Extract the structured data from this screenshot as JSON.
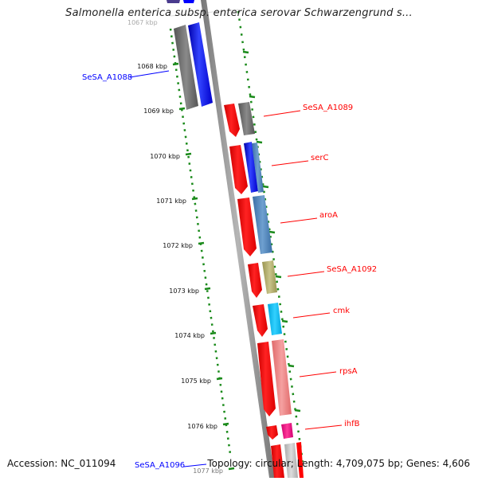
{
  "title": "Salmonella enterica subsp. enterica serovar Schwarzengrund s...",
  "footer": {
    "accession": "Accession: NC_011094",
    "stats": "Topology: circular; Length: 4,709,075 bp; Genes: 4,606"
  },
  "colors": {
    "forward_strand": "#0000ff",
    "reverse_strand": "#ff0000",
    "backbone": "#888888",
    "tick_dots": "#1a8a1a",
    "grey_gene": "#666666"
  },
  "kbp_ticks": [
    {
      "label": "1068 kbp"
    },
    {
      "label": "1069 kbp"
    },
    {
      "label": "1070 kbp"
    },
    {
      "label": "1071 kbp"
    },
    {
      "label": "1072 kbp"
    },
    {
      "label": "1073 kbp"
    },
    {
      "label": "1074 kbp"
    },
    {
      "label": "1075 kbp"
    },
    {
      "label": "1076 kbp"
    },
    {
      "label": "1077 kbp"
    }
  ],
  "gene_labels": [
    {
      "name": "SeSA_A1088",
      "strand": "forward"
    },
    {
      "name": "SeSA_A1089",
      "strand": "reverse"
    },
    {
      "name": "serC",
      "strand": "reverse"
    },
    {
      "name": "aroA",
      "strand": "reverse"
    },
    {
      "name": "SeSA_A1092",
      "strand": "reverse"
    },
    {
      "name": "cmk",
      "strand": "reverse"
    },
    {
      "name": "rpsA",
      "strand": "reverse"
    },
    {
      "name": "ihfB",
      "strand": "reverse"
    },
    {
      "name": "SeSA_A1096",
      "strand": "forward"
    }
  ]
}
